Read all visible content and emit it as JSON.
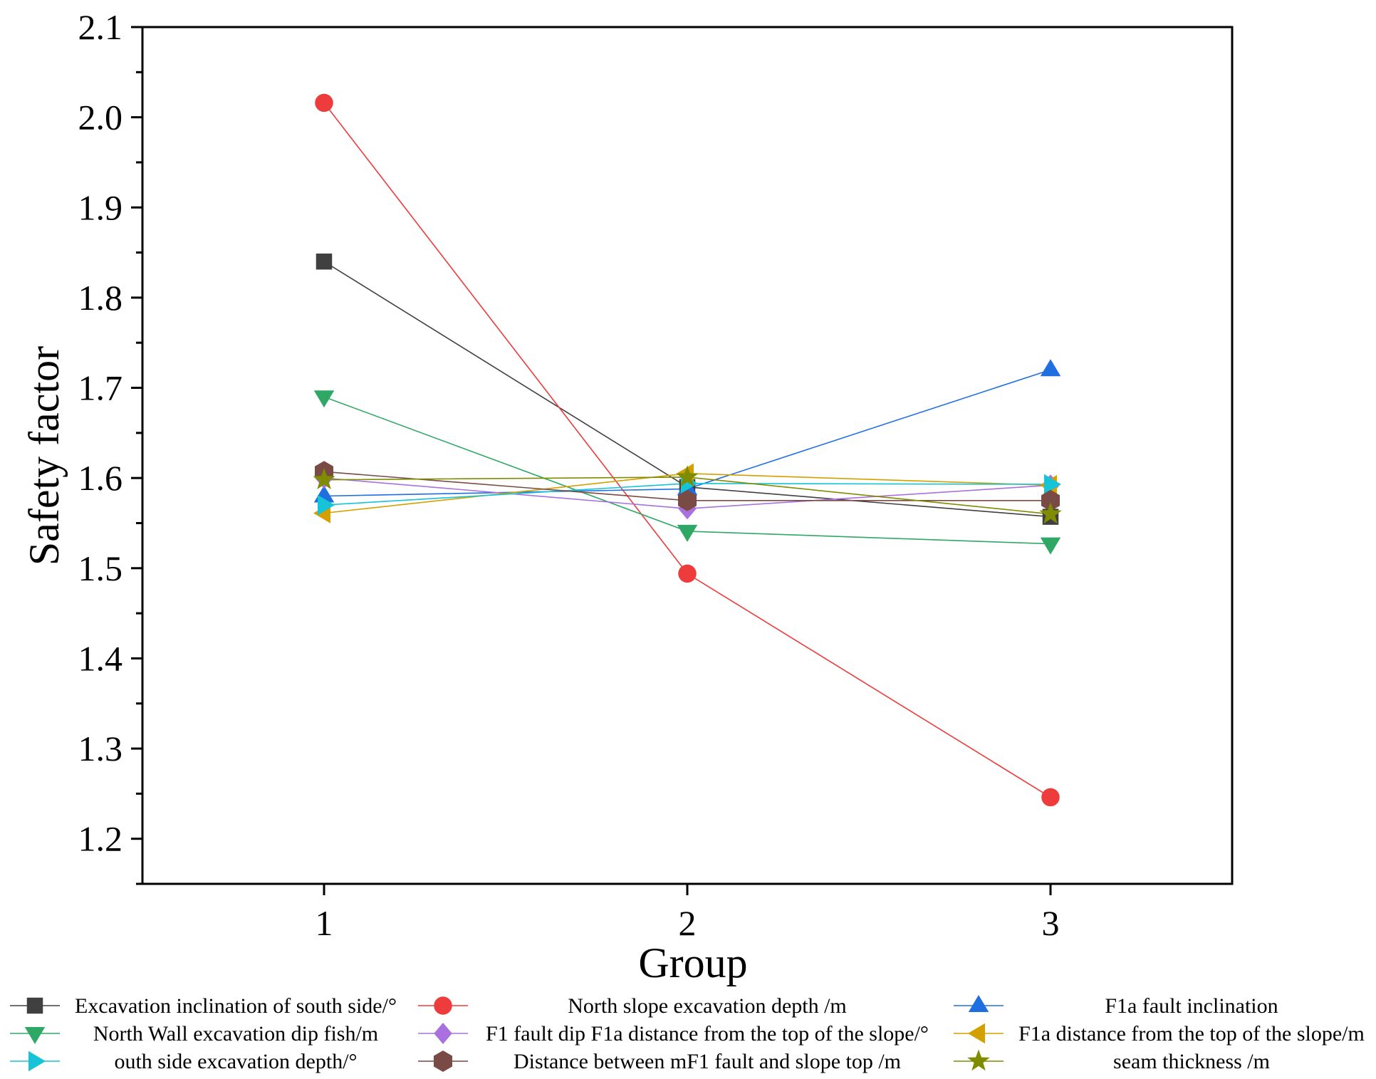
{
  "chart_data": {
    "type": "line",
    "title": "",
    "xlabel": "Group",
    "ylabel": "Safety factor",
    "x": [
      1,
      2,
      3
    ],
    "xticks": [
      "1",
      "2",
      "3"
    ],
    "xlim": [
      0.5,
      3.5
    ],
    "ylim": [
      1.15,
      2.1
    ],
    "yticks": [
      "1.2",
      "1.3",
      "1.4",
      "1.5",
      "1.6",
      "1.7",
      "1.8",
      "1.9",
      "2.0",
      "2.1"
    ],
    "ytick_values": [
      1.2,
      1.3,
      1.4,
      1.5,
      1.6,
      1.7,
      1.8,
      1.9,
      2.0,
      2.1
    ],
    "grid": false,
    "legend_position": "bottom",
    "series": [
      {
        "name": "Excavation inclination of south side/°",
        "values": [
          1.84,
          1.59,
          1.557
        ],
        "color": "#404040",
        "marker": "square"
      },
      {
        "name": "North slope excavation depth /m",
        "values": [
          2.016,
          1.494,
          1.246
        ],
        "color": "#ee3b3b",
        "marker": "circle"
      },
      {
        "name": "F1a fault inclination",
        "values": [
          1.58,
          1.588,
          1.72
        ],
        "color": "#1f6fe0",
        "marker": "triangle-up"
      },
      {
        "name": "North Wall excavation dip fish/m",
        "values": [
          1.69,
          1.541,
          1.527
        ],
        "color": "#2fa866",
        "marker": "triangle-down"
      },
      {
        "name": "F1 fault dip F1a distance from the top of the slope/°",
        "values": [
          1.6,
          1.566,
          1.592
        ],
        "color": "#a970e0",
        "marker": "diamond"
      },
      {
        "name": "F1a distance from the top of the slope/m",
        "values": [
          1.561,
          1.605,
          1.592
        ],
        "color": "#d4a000",
        "marker": "triangle-left"
      },
      {
        "name": "outh side excavation depth/°",
        "values": [
          1.57,
          1.594,
          1.593
        ],
        "color": "#17c3d6",
        "marker": "triangle-right"
      },
      {
        "name": "Distance between mF1 fault and slope top /m",
        "values": [
          1.607,
          1.575,
          1.575
        ],
        "color": "#7a4a45",
        "marker": "hexagon"
      },
      {
        "name": "seam thickness /m",
        "values": [
          1.598,
          1.601,
          1.56
        ],
        "color": "#7f8c00",
        "marker": "star"
      }
    ]
  }
}
